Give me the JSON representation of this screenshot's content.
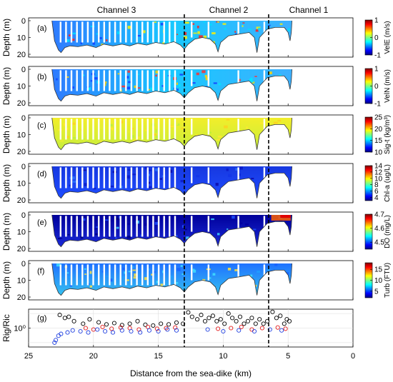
{
  "figure": {
    "section_titles": [
      "Channel 3",
      "Channel 2",
      "Channel 1"
    ],
    "xlabel": "Distance from the sea-dike (km)",
    "xlim": [
      25,
      0
    ],
    "xticks": [
      "25",
      "20",
      "15",
      "10",
      "5",
      "0"
    ],
    "divider_x_km": [
      13.0,
      6.5
    ]
  },
  "chart_data": [
    {
      "type": "heatmap",
      "panel": "(a)",
      "ylabel": "Depth (m)",
      "ylim": [
        20,
        0
      ],
      "yticks": [
        "0",
        "10",
        "20"
      ],
      "colorbar": {
        "label": "VelE (m/s)",
        "ticks": [
          "1",
          "0",
          "-1"
        ],
        "range": [
          -1,
          1
        ],
        "colormap": "jet"
      }
    },
    {
      "type": "heatmap",
      "panel": "(b)",
      "ylabel": "Depth (m)",
      "ylim": [
        20,
        0
      ],
      "yticks": [
        "0",
        "10",
        "20"
      ],
      "colorbar": {
        "label": "VelN (m/s)",
        "ticks": [
          "1",
          "0",
          "-1"
        ],
        "range": [
          -1,
          1
        ],
        "colormap": "jet"
      }
    },
    {
      "type": "heatmap",
      "panel": "(c)",
      "ylabel": "Depth (m)",
      "ylim": [
        20,
        0
      ],
      "yticks": [
        "0",
        "10",
        "20"
      ],
      "colorbar": {
        "label": "Sig-t (kg/m³)",
        "ticks": [
          "25",
          "20",
          "15",
          "10"
        ],
        "range": [
          10,
          25
        ],
        "colormap": "jet"
      }
    },
    {
      "type": "heatmap",
      "panel": "(d)",
      "ylabel": "Depth (m)",
      "ylim": [
        20,
        0
      ],
      "yticks": [
        "0",
        "10",
        "20"
      ],
      "colorbar": {
        "label": "Chl-a (ug/L)",
        "ticks": [
          "14",
          "12",
          "10",
          "8",
          "6",
          "4"
        ],
        "range": [
          3,
          14
        ],
        "colormap": "jet"
      }
    },
    {
      "type": "heatmap",
      "panel": "(e)",
      "ylabel": "Depth (m)",
      "ylim": [
        20,
        0
      ],
      "yticks": [
        "0",
        "10",
        "20"
      ],
      "colorbar": {
        "label": "DO (mg/L)",
        "ticks": [
          "4.7",
          "4.6",
          "4.5"
        ],
        "range": [
          4.45,
          4.7
        ],
        "colormap": "jet"
      }
    },
    {
      "type": "heatmap",
      "panel": "(f)",
      "ylabel": "Depth (m)",
      "ylim": [
        20,
        0
      ],
      "yticks": [
        "0",
        "10",
        "20"
      ],
      "colorbar": {
        "label": "Turb (FTU)",
        "ticks": [
          "15",
          "10",
          "5"
        ],
        "range": [
          2,
          18
        ],
        "colormap": "jet"
      }
    },
    {
      "type": "scatter",
      "panel": "(g)",
      "ylabel": "Rig/Ric",
      "yscale": "log",
      "ylim": [
        0.05,
        20
      ],
      "yticks": [
        "10⁰"
      ],
      "series": [
        {
          "color": "#000000",
          "points": [
            [
              22.6,
              8
            ],
            [
              22.2,
              5
            ],
            [
              21.9,
              6
            ],
            [
              21.5,
              3
            ],
            [
              20.8,
              2
            ],
            [
              20.3,
              4
            ],
            [
              19.6,
              2.5
            ],
            [
              19.0,
              1.8
            ],
            [
              18.4,
              2.2
            ],
            [
              17.8,
              1.6
            ],
            [
              17.2,
              2.0
            ],
            [
              16.6,
              3.0
            ],
            [
              16.0,
              1.7
            ],
            [
              15.4,
              1.5
            ],
            [
              14.8,
              2.0
            ],
            [
              14.2,
              1.8
            ],
            [
              13.6,
              2.4
            ],
            [
              13.1,
              2.0
            ],
            [
              12.7,
              12
            ],
            [
              12.4,
              6
            ],
            [
              12.0,
              4
            ],
            [
              11.7,
              8
            ],
            [
              11.4,
              3
            ],
            [
              11.1,
              5
            ],
            [
              10.8,
              7
            ],
            [
              10.5,
              3
            ],
            [
              10.2,
              4
            ],
            [
              9.9,
              2
            ],
            [
              9.6,
              10
            ],
            [
              9.3,
              5
            ],
            [
              9.0,
              3
            ],
            [
              8.7,
              6
            ],
            [
              8.4,
              2
            ],
            [
              8.1,
              3
            ],
            [
              7.8,
              5
            ],
            [
              7.5,
              2
            ],
            [
              7.2,
              4
            ],
            [
              6.9,
              2
            ],
            [
              6.6,
              3
            ],
            [
              6.2,
              13
            ],
            [
              5.9,
              5
            ],
            [
              5.6,
              7
            ],
            [
              5.3,
              2
            ],
            [
              5.1,
              4
            ],
            [
              4.9,
              3
            ]
          ]
        },
        {
          "color": "#e41a1c",
          "points": [
            [
              20.6,
              1.0
            ],
            [
              20.0,
              0.8
            ],
            [
              19.3,
              1.2
            ],
            [
              18.6,
              0.9
            ],
            [
              17.9,
              1.1
            ],
            [
              17.2,
              1.0
            ],
            [
              16.5,
              0.8
            ],
            [
              15.8,
              1.2
            ],
            [
              15.1,
              0.9
            ],
            [
              14.4,
              1.0
            ],
            [
              13.7,
              1.1
            ],
            [
              10.4,
              0.9
            ],
            [
              9.4,
              1.0
            ],
            [
              8.6,
              1.2
            ],
            [
              7.8,
              0.8
            ],
            [
              7.0,
              1.0
            ],
            [
              5.8,
              1.1
            ],
            [
              5.2,
              0.9
            ]
          ]
        },
        {
          "color": "#1f3fe0",
          "points": [
            [
              23.0,
              0.1
            ],
            [
              22.9,
              0.15
            ],
            [
              22.7,
              0.3
            ],
            [
              22.5,
              0.4
            ],
            [
              22.0,
              0.5
            ],
            [
              21.6,
              0.7
            ],
            [
              21.0,
              0.6
            ],
            [
              20.4,
              0.5
            ],
            [
              19.7,
              0.8
            ],
            [
              19.1,
              0.6
            ],
            [
              18.5,
              0.5
            ],
            [
              17.8,
              0.7
            ],
            [
              17.1,
              0.6
            ],
            [
              16.4,
              0.5
            ],
            [
              15.7,
              0.7
            ],
            [
              15.0,
              0.6
            ],
            [
              14.3,
              0.8
            ],
            [
              13.6,
              0.7
            ],
            [
              11.2,
              0.8
            ],
            [
              10.0,
              0.6
            ],
            [
              8.8,
              0.7
            ],
            [
              7.6,
              0.6
            ],
            [
              6.4,
              0.8
            ],
            [
              5.5,
              0.7
            ]
          ]
        }
      ]
    }
  ]
}
